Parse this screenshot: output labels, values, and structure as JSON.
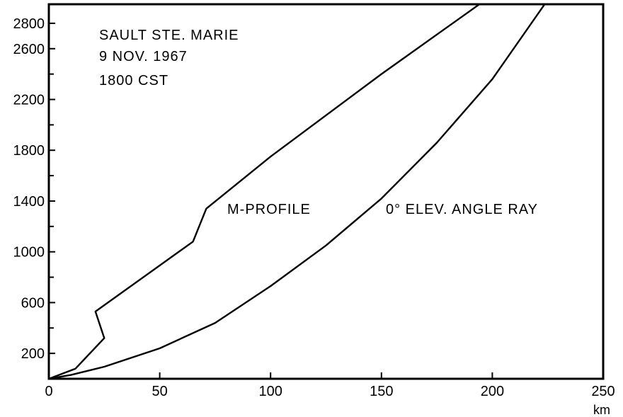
{
  "chart_data": {
    "type": "line",
    "title": "",
    "xlabel": "",
    "x_unit": "km",
    "ylabel": "",
    "xlim": [
      0,
      250
    ],
    "ylim": [
      0,
      2950
    ],
    "x_ticks": [
      0,
      50,
      100,
      150,
      200,
      250
    ],
    "y_ticks": [
      200,
      600,
      1000,
      1400,
      1800,
      2200,
      2600,
      2800
    ],
    "y_minor_ticks": [
      400,
      800,
      1200,
      1600,
      2000,
      2400
    ],
    "grid": false,
    "annotation_lines": [
      "SAULT STE. MARIE",
      "9 NOV. 1967",
      "1800 CST"
    ],
    "series": [
      {
        "name": "M-PROFILE",
        "x": [
          0,
          12,
          25,
          21,
          65,
          71,
          100,
          150,
          195
        ],
        "y": [
          0,
          80,
          320,
          530,
          1080,
          1340,
          1750,
          2400,
          2960
        ]
      },
      {
        "name": "0° ELEV. ANGLE RAY",
        "x": [
          0,
          10,
          25,
          50,
          75,
          100,
          125,
          150,
          175,
          200,
          224
        ],
        "y": [
          0,
          30,
          95,
          240,
          440,
          730,
          1050,
          1420,
          1860,
          2360,
          2960
        ]
      }
    ]
  }
}
